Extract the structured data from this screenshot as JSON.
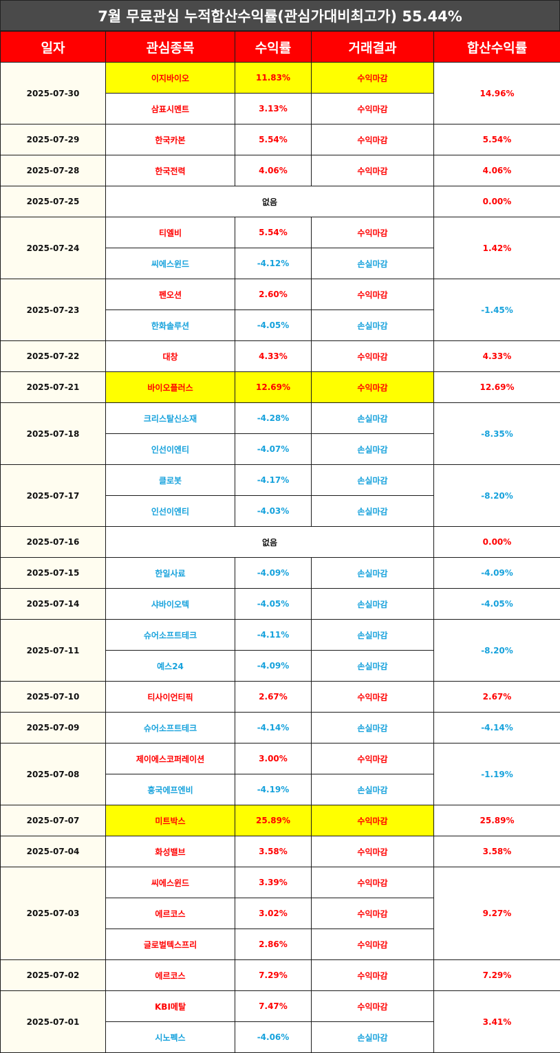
{
  "title": "7월 무료관심 누적합산수익률(관심가대비최고가) 55.44%",
  "headers": [
    "일자",
    "관심종목",
    "수익률",
    "거래결과",
    "합산수익률"
  ],
  "colors": {
    "header_bg": "#ff0000",
    "title_bg": "#4a4a4a",
    "positive": "#ff0000",
    "negative": "#17a2dc",
    "highlight": "#ffff00"
  },
  "days": [
    {
      "date": "2025-07-30",
      "total": "14.96%",
      "entries": [
        {
          "name": "이지바이오",
          "rate": "11.83%",
          "result": "수익마감",
          "highlight": true
        },
        {
          "name": "삼표시멘트",
          "rate": "3.13%",
          "result": "수익마감"
        }
      ]
    },
    {
      "date": "2025-07-29",
      "total": "5.54%",
      "entries": [
        {
          "name": "한국카본",
          "rate": "5.54%",
          "result": "수익마감"
        }
      ]
    },
    {
      "date": "2025-07-28",
      "total": "4.06%",
      "entries": [
        {
          "name": "한국전력",
          "rate": "4.06%",
          "result": "수익마감"
        }
      ]
    },
    {
      "date": "2025-07-25",
      "total": "0.00%",
      "none": "없음",
      "entries": []
    },
    {
      "date": "2025-07-24",
      "total": "1.42%",
      "entries": [
        {
          "name": "티엘비",
          "rate": "5.54%",
          "result": "수익마감"
        },
        {
          "name": "씨에스윈드",
          "rate": "-4.12%",
          "result": "손실마감"
        }
      ]
    },
    {
      "date": "2025-07-23",
      "total": "-1.45%",
      "entries": [
        {
          "name": "펜오션",
          "rate": "2.60%",
          "result": "수익마감"
        },
        {
          "name": "한화솔루션",
          "rate": "-4.05%",
          "result": "손실마감"
        }
      ]
    },
    {
      "date": "2025-07-22",
      "total": "4.33%",
      "entries": [
        {
          "name": "대창",
          "rate": "4.33%",
          "result": "수익마감"
        }
      ]
    },
    {
      "date": "2025-07-21",
      "total": "12.69%",
      "entries": [
        {
          "name": "바이오플러스",
          "rate": "12.69%",
          "result": "수익마감",
          "highlight": true
        }
      ]
    },
    {
      "date": "2025-07-18",
      "total": "-8.35%",
      "entries": [
        {
          "name": "크리스탈신소재",
          "rate": "-4.28%",
          "result": "손실마감"
        },
        {
          "name": "인선이엔티",
          "rate": "-4.07%",
          "result": "손실마감"
        }
      ]
    },
    {
      "date": "2025-07-17",
      "total": "-8.20%",
      "entries": [
        {
          "name": "클로봇",
          "rate": "-4.17%",
          "result": "손실마감"
        },
        {
          "name": "인선이엔티",
          "rate": "-4.03%",
          "result": "손실마감"
        }
      ]
    },
    {
      "date": "2025-07-16",
      "total": "0.00%",
      "none": "없음",
      "entries": []
    },
    {
      "date": "2025-07-15",
      "total": "-4.09%",
      "entries": [
        {
          "name": "한일사료",
          "rate": "-4.09%",
          "result": "손실마감"
        }
      ]
    },
    {
      "date": "2025-07-14",
      "total": "-4.05%",
      "entries": [
        {
          "name": "샤바이오텍",
          "rate": "-4.05%",
          "result": "손실마감"
        }
      ]
    },
    {
      "date": "2025-07-11",
      "total": "-8.20%",
      "entries": [
        {
          "name": "슈어소프트테크",
          "rate": "-4.11%",
          "result": "손실마감"
        },
        {
          "name": "예스24",
          "rate": "-4.09%",
          "result": "손실마감"
        }
      ]
    },
    {
      "date": "2025-07-10",
      "total": "2.67%",
      "entries": [
        {
          "name": "티사이언티픽",
          "rate": "2.67%",
          "result": "수익마감"
        }
      ]
    },
    {
      "date": "2025-07-09",
      "total": "-4.14%",
      "entries": [
        {
          "name": "슈어소프트테크",
          "rate": "-4.14%",
          "result": "손실마감"
        }
      ]
    },
    {
      "date": "2025-07-08",
      "total": "-1.19%",
      "entries": [
        {
          "name": "제이에스코퍼레이션",
          "rate": "3.00%",
          "result": "수익마감"
        },
        {
          "name": "흥국에프엔비",
          "rate": "-4.19%",
          "result": "손실마감"
        }
      ]
    },
    {
      "date": "2025-07-07",
      "total": "25.89%",
      "entries": [
        {
          "name": "미트박스",
          "rate": "25.89%",
          "result": "수익마감",
          "highlight": true
        }
      ]
    },
    {
      "date": "2025-07-04",
      "total": "3.58%",
      "entries": [
        {
          "name": "화성밸브",
          "rate": "3.58%",
          "result": "수익마감"
        }
      ]
    },
    {
      "date": "2025-07-03",
      "total": "9.27%",
      "entries": [
        {
          "name": "씨에스윈드",
          "rate": "3.39%",
          "result": "수익마감"
        },
        {
          "name": "에르코스",
          "rate": "3.02%",
          "result": "수익마감"
        },
        {
          "name": "글로벌텍스프리",
          "rate": "2.86%",
          "result": "수익마감"
        }
      ]
    },
    {
      "date": "2025-07-02",
      "total": "7.29%",
      "entries": [
        {
          "name": "에르코스",
          "rate": "7.29%",
          "result": "수익마감"
        }
      ]
    },
    {
      "date": "2025-07-01",
      "total": "3.41%",
      "entries": [
        {
          "name": "KBI메탈",
          "rate": "7.47%",
          "result": "수익마감"
        },
        {
          "name": "시노펙스",
          "rate": "-4.06%",
          "result": "손실마감"
        }
      ]
    }
  ]
}
